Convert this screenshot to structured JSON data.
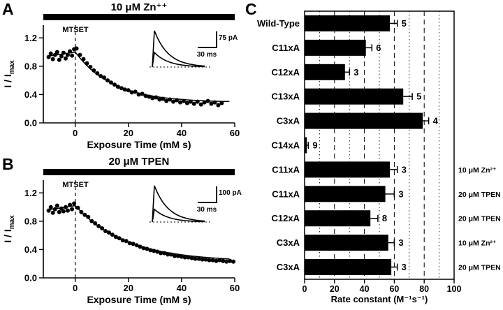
{
  "chart_data": [
    {
      "type": "scatter",
      "panel": "A",
      "title": "10 μM Zn⁺⁺",
      "xlabel": "Exposure Time (mM s)",
      "ylabel_main": "I / I",
      "ylabel_sub": "max",
      "annotation": "MTSET",
      "vline_x": 0,
      "xlim": [
        -12,
        60
      ],
      "ylim": [
        0,
        1.38
      ],
      "xticks": [
        0,
        20,
        40,
        60
      ],
      "yticks": [
        0.0,
        0.4,
        0.8,
        1.2
      ],
      "fit": {
        "pre_start": 0.94,
        "pre_end": 1.0,
        "plateau": 0.29,
        "tau": 14
      },
      "inset": {
        "scale_v": "75 pA",
        "scale_h": "30 ms",
        "trace_rel_amplitudes": [
          1.0,
          0.4
        ]
      },
      "points": [
        [
          -10,
          0.93
        ],
        [
          -9.2,
          0.98
        ],
        [
          -8.4,
          0.9
        ],
        [
          -7.6,
          0.96
        ],
        [
          -6.8,
          1.0
        ],
        [
          -6,
          0.89
        ],
        [
          -5.2,
          0.94
        ],
        [
          -4.4,
          0.99
        ],
        [
          -3.6,
          0.91
        ],
        [
          -2.8,
          0.96
        ],
        [
          -2,
          1.01
        ],
        [
          -1.2,
          0.95
        ],
        [
          -0.4,
          1.04
        ],
        [
          0.5,
          1.05
        ],
        [
          1.8,
          0.96
        ],
        [
          3.1,
          0.9
        ],
        [
          4.4,
          0.84
        ],
        [
          5.7,
          0.79
        ],
        [
          7,
          0.74
        ],
        [
          8.3,
          0.7
        ],
        [
          9.6,
          0.66
        ],
        [
          10.9,
          0.64
        ],
        [
          12.2,
          0.6
        ],
        [
          13.5,
          0.57
        ],
        [
          14.8,
          0.54
        ],
        [
          16.1,
          0.51
        ],
        [
          17.4,
          0.49
        ],
        [
          18.7,
          0.47
        ],
        [
          20,
          0.46
        ],
        [
          21.3,
          0.43
        ],
        [
          22.6,
          0.44
        ],
        [
          23.9,
          0.4
        ],
        [
          25.2,
          0.41
        ],
        [
          26.5,
          0.38
        ],
        [
          27.8,
          0.37
        ],
        [
          29.1,
          0.35
        ],
        [
          30.4,
          0.36
        ],
        [
          31.7,
          0.33
        ],
        [
          33,
          0.34
        ],
        [
          34.3,
          0.31
        ],
        [
          35.6,
          0.33
        ],
        [
          36.9,
          0.3
        ],
        [
          38.2,
          0.32
        ],
        [
          39.5,
          0.29
        ],
        [
          40.8,
          0.31
        ],
        [
          42.1,
          0.28
        ],
        [
          43.4,
          0.3
        ],
        [
          44.7,
          0.27
        ],
        [
          46,
          0.3
        ],
        [
          47.3,
          0.26
        ],
        [
          48.6,
          0.29
        ],
        [
          49.9,
          0.31
        ],
        [
          51.2,
          0.27
        ],
        [
          52.5,
          0.29
        ],
        [
          53.8,
          0.25
        ],
        [
          55.1,
          0.28
        ]
      ]
    },
    {
      "type": "scatter",
      "panel": "B",
      "title": "20 μM TPEN",
      "xlabel": "Exposure Time (mM s)",
      "ylabel_main": "I / I",
      "ylabel_sub": "max",
      "annotation": "MTSET",
      "vline_x": 0,
      "xlim": [
        -12,
        60
      ],
      "ylim": [
        0,
        1.38
      ],
      "xticks": [
        0,
        20,
        40,
        60
      ],
      "yticks": [
        0.0,
        0.4,
        0.8,
        1.2
      ],
      "fit": {
        "pre_start": 0.96,
        "pre_end": 1.02,
        "plateau": 0.23,
        "tau": 19
      },
      "inset": {
        "scale_v": "100 pA",
        "scale_h": "30 ms",
        "trace_rel_amplitudes": [
          1.0,
          0.35
        ]
      },
      "points": [
        [
          -10,
          0.95
        ],
        [
          -9.2,
          1.0
        ],
        [
          -8.4,
          0.92
        ],
        [
          -7.6,
          0.97
        ],
        [
          -6.8,
          1.02
        ],
        [
          -6,
          0.93
        ],
        [
          -5.2,
          0.98
        ],
        [
          -4.4,
          0.94
        ],
        [
          -3.6,
          1.0
        ],
        [
          -2.8,
          0.95
        ],
        [
          -2,
          1.03
        ],
        [
          -1.2,
          0.97
        ],
        [
          -0.4,
          1.05
        ],
        [
          1,
          0.99
        ],
        [
          2.3,
          0.93
        ],
        [
          3.6,
          0.89
        ],
        [
          4.9,
          0.86
        ],
        [
          6.2,
          0.8
        ],
        [
          7.5,
          0.77
        ],
        [
          8.8,
          0.73
        ],
        [
          10.1,
          0.7
        ],
        [
          11.4,
          0.66
        ],
        [
          12.7,
          0.64
        ],
        [
          14,
          0.61
        ],
        [
          15.3,
          0.58
        ],
        [
          16.6,
          0.56
        ],
        [
          17.9,
          0.53
        ],
        [
          19.2,
          0.52
        ],
        [
          20.5,
          0.49
        ],
        [
          21.8,
          0.48
        ],
        [
          23.1,
          0.46
        ],
        [
          24.4,
          0.44
        ],
        [
          25.7,
          0.42
        ],
        [
          27,
          0.41
        ],
        [
          28.3,
          0.39
        ],
        [
          29.6,
          0.38
        ],
        [
          30.9,
          0.37
        ],
        [
          32.2,
          0.35
        ],
        [
          33.5,
          0.35
        ],
        [
          34.8,
          0.33
        ],
        [
          36.1,
          0.33
        ],
        [
          37.4,
          0.31
        ],
        [
          38.7,
          0.31
        ],
        [
          40,
          0.3
        ],
        [
          41.3,
          0.29
        ],
        [
          42.6,
          0.29
        ],
        [
          43.9,
          0.28
        ],
        [
          45.2,
          0.27
        ],
        [
          46.5,
          0.27
        ],
        [
          47.8,
          0.26
        ],
        [
          49.1,
          0.26
        ],
        [
          50.4,
          0.25
        ],
        [
          51.7,
          0.25
        ],
        [
          53,
          0.24
        ],
        [
          54.3,
          0.25
        ],
        [
          55.6,
          0.24
        ],
        [
          56.9,
          0.23
        ],
        [
          58.2,
          0.24
        ],
        [
          59.5,
          0.23
        ]
      ]
    },
    {
      "type": "bar",
      "panel": "C",
      "orientation": "horizontal",
      "xlabel": "Rate constant (M⁻¹s⁻¹)",
      "xlim": [
        0,
        100
      ],
      "xticks": [
        0,
        20,
        40,
        60,
        80,
        100
      ],
      "gridlines": [
        10,
        20,
        30,
        40,
        50,
        60,
        70,
        80,
        90
      ],
      "categories": [
        "Wild-Type",
        "C11xA",
        "C12xA",
        "C13xA",
        "C3xA",
        "C14xA",
        "C11xA",
        "C11xA",
        "C12xA",
        "C3xA",
        "C3xA"
      ],
      "values": [
        57,
        41,
        27,
        66,
        79,
        1.5,
        57,
        54,
        44,
        56,
        58
      ],
      "errors": [
        5,
        4,
        3,
        6,
        4,
        1,
        5,
        6,
        5,
        4,
        4
      ],
      "n_labels": [
        "5",
        "6",
        "3",
        "5",
        "4",
        "9",
        "3",
        "3",
        "8",
        "3",
        "3"
      ],
      "condition_labels": [
        "",
        "",
        "",
        "",
        "",
        "",
        "10 μM Zn²⁺",
        "20 μM TPEN",
        "20 μM TPEN",
        "10 μM Zn²⁺",
        "20 μM TPEN"
      ]
    }
  ]
}
